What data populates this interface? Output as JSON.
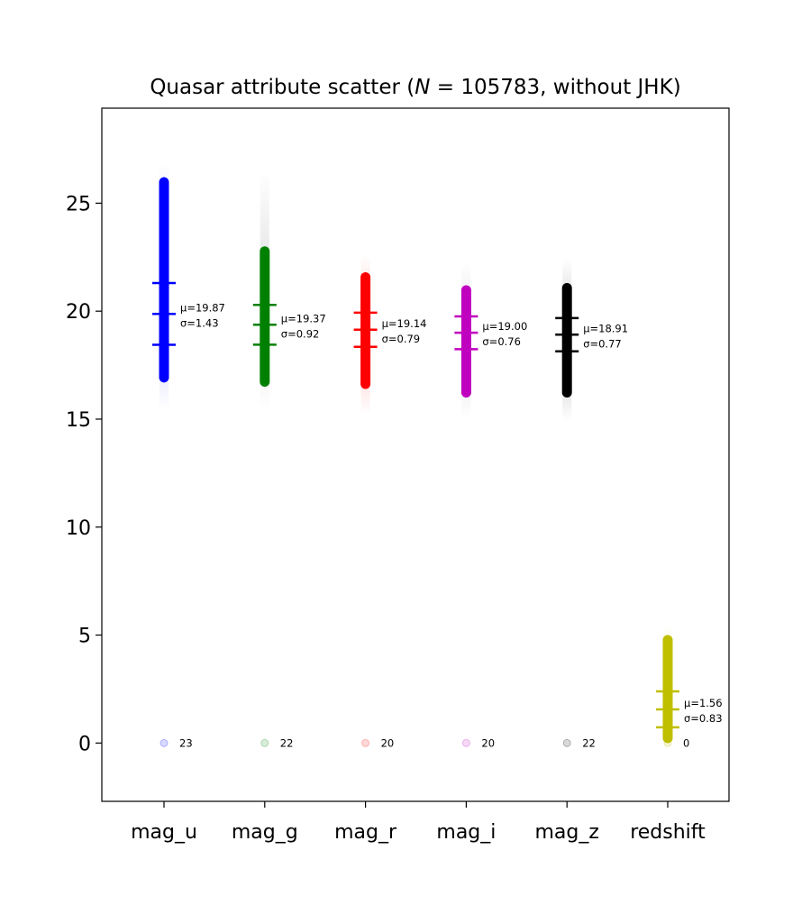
{
  "chart_data": {
    "type": "scatter",
    "title": "Quasar attribute scatter (N = 105783, without JHK)",
    "title_parts": {
      "prefix": "Quasar attribute scatter (",
      "var": "N",
      "suffix": " = 105783, without JHK)"
    },
    "xlabel": "",
    "ylabel": "",
    "ylim": [
      -2.7,
      29.4
    ],
    "yticks": [
      {
        "value": 0,
        "label": "0"
      },
      {
        "value": 5,
        "label": "5"
      },
      {
        "value": 10,
        "label": "10"
      },
      {
        "value": 15,
        "label": "15"
      },
      {
        "value": 20,
        "label": "20"
      },
      {
        "value": 25,
        "label": "25"
      }
    ],
    "grid": false,
    "series": [
      {
        "category": "mag_u",
        "color": "#0000ff",
        "outlier_color": "#0000ff",
        "core": [
          16.7,
          26.2
        ],
        "faint": [
          15.4,
          26.8
        ],
        "mean": 19.87,
        "std": 1.43,
        "mean_label": "μ=19.87",
        "std_label": "σ=1.43",
        "missing_count": 23,
        "missing_label": "23"
      },
      {
        "category": "mag_g",
        "color": "#008000",
        "outlier_color": "#808080",
        "core": [
          16.5,
          23.0
        ],
        "faint": [
          15.4,
          26.5
        ],
        "mean": 19.37,
        "std": 0.92,
        "mean_label": "μ=19.37",
        "std_label": "σ=0.92",
        "missing_count": 22,
        "missing_label": "22"
      },
      {
        "category": "mag_r",
        "color": "#ff0000",
        "outlier_color": "#ff0000",
        "core": [
          16.4,
          21.8
        ],
        "faint": [
          15.2,
          22.6
        ],
        "mean": 19.14,
        "std": 0.79,
        "mean_label": "μ=19.14",
        "std_label": "σ=0.79",
        "missing_count": 20,
        "missing_label": "20"
      },
      {
        "category": "mag_i",
        "color": "#bf00bf",
        "outlier_color": "#808080",
        "core": [
          16.0,
          21.2
        ],
        "faint": [
          15.0,
          22.2
        ],
        "mean": 19.0,
        "std": 0.76,
        "mean_label": "μ=19.00",
        "std_label": "σ=0.76",
        "missing_count": 20,
        "missing_label": "20"
      },
      {
        "category": "mag_z",
        "color": "#000000",
        "outlier_color": "#000000",
        "core": [
          16.0,
          21.3
        ],
        "faint": [
          14.9,
          22.4
        ],
        "mean": 18.91,
        "std": 0.77,
        "mean_label": "μ=18.91",
        "std_label": "σ=0.77",
        "missing_count": 22,
        "missing_label": "22"
      },
      {
        "category": "redshift",
        "color": "#bfbf00",
        "outlier_color": "#bfbf00",
        "core": [
          0.0,
          5.0
        ],
        "faint": [
          0.0,
          5.5
        ],
        "mean": 1.56,
        "std": 0.83,
        "mean_label": "μ=1.56",
        "std_label": "σ=0.83",
        "missing_count": 0,
        "missing_label": "0"
      }
    ]
  }
}
